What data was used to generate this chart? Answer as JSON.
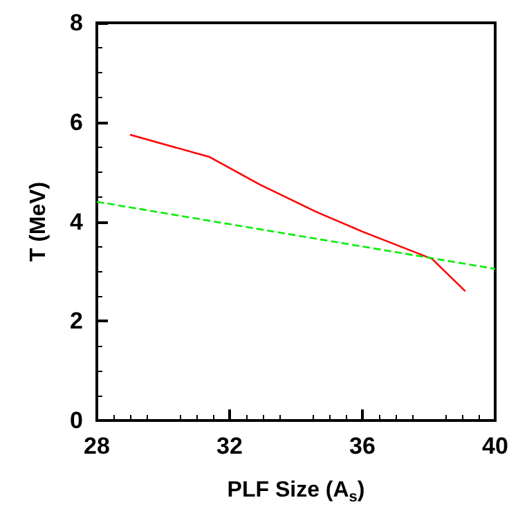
{
  "chart_data": {
    "type": "line",
    "xlabel": "PLF Size (A$_{s}$)",
    "ylabel": "T (MeV)",
    "xlim": [
      28,
      40
    ],
    "xticks": [
      28,
      32,
      36,
      40
    ],
    "ylim": [
      0,
      8
    ],
    "yticks": [
      0,
      2,
      4,
      6,
      8
    ],
    "grid": false,
    "marker": "none",
    "series": [
      {
        "color": "#ff0000",
        "line_style": "solid",
        "x": [
          29,
          31.4,
          32.9,
          34.6,
          36,
          38.1,
          39.1
        ],
        "values": [
          5.75,
          5.3,
          4.75,
          4.2,
          3.8,
          3.25,
          2.6
        ]
      },
      {
        "color": "#00ee00",
        "line_style": "dashed",
        "x": [
          28,
          40
        ],
        "values": [
          4.4,
          3.05
        ]
      }
    ]
  }
}
